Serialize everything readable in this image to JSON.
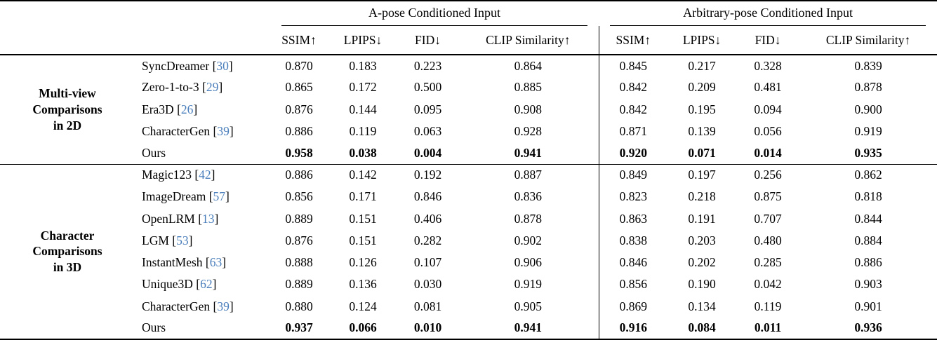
{
  "table": {
    "col_groups": [
      {
        "label": "A-pose Conditioned Input"
      },
      {
        "label": "Arbitrary-pose Conditioned Input"
      }
    ],
    "metrics": [
      "SSIM↑",
      "LPIPS↓",
      "FID↓",
      "CLIP Similarity↑"
    ],
    "citation_color": "#4a7ebb",
    "sections": [
      {
        "label_lines": [
          "Multi-view",
          "Comparisons",
          "in 2D"
        ],
        "rows": [
          {
            "method": "SyncDreamer",
            "cite": "30",
            "apose": [
              "0.870",
              "0.183",
              "0.223",
              "0.864"
            ],
            "arb": [
              "0.845",
              "0.217",
              "0.328",
              "0.839"
            ],
            "bold": false
          },
          {
            "method": "Zero-1-to-3",
            "cite": "29",
            "apose": [
              "0.865",
              "0.172",
              "0.500",
              "0.885"
            ],
            "arb": [
              "0.842",
              "0.209",
              "0.481",
              "0.878"
            ],
            "bold": false
          },
          {
            "method": "Era3D",
            "cite": "26",
            "apose": [
              "0.876",
              "0.144",
              "0.095",
              "0.908"
            ],
            "arb": [
              "0.842",
              "0.195",
              "0.094",
              "0.900"
            ],
            "bold": false
          },
          {
            "method": "CharacterGen",
            "cite": "39",
            "apose": [
              "0.886",
              "0.119",
              "0.063",
              "0.928"
            ],
            "arb": [
              "0.871",
              "0.139",
              "0.056",
              "0.919"
            ],
            "bold": false
          },
          {
            "method": "Ours",
            "cite": null,
            "apose": [
              "0.958",
              "0.038",
              "0.004",
              "0.941"
            ],
            "arb": [
              "0.920",
              "0.071",
              "0.014",
              "0.935"
            ],
            "bold": true
          }
        ]
      },
      {
        "label_lines": [
          "Character",
          "Comparisons",
          "in 3D"
        ],
        "rows": [
          {
            "method": "Magic123",
            "cite": "42",
            "apose": [
              "0.886",
              "0.142",
              "0.192",
              "0.887"
            ],
            "arb": [
              "0.849",
              "0.197",
              "0.256",
              "0.862"
            ],
            "bold": false
          },
          {
            "method": "ImageDream",
            "cite": "57",
            "apose": [
              "0.856",
              "0.171",
              "0.846",
              "0.836"
            ],
            "arb": [
              "0.823",
              "0.218",
              "0.875",
              "0.818"
            ],
            "bold": false
          },
          {
            "method": "OpenLRM",
            "cite": "13",
            "apose": [
              "0.889",
              "0.151",
              "0.406",
              "0.878"
            ],
            "arb": [
              "0.863",
              "0.191",
              "0.707",
              "0.844"
            ],
            "bold": false
          },
          {
            "method": "LGM",
            "cite": "53",
            "apose": [
              "0.876",
              "0.151",
              "0.282",
              "0.902"
            ],
            "arb": [
              "0.838",
              "0.203",
              "0.480",
              "0.884"
            ],
            "bold": false
          },
          {
            "method": "InstantMesh",
            "cite": "63",
            "apose": [
              "0.888",
              "0.126",
              "0.107",
              "0.906"
            ],
            "arb": [
              "0.846",
              "0.202",
              "0.285",
              "0.886"
            ],
            "bold": false
          },
          {
            "method": "Unique3D",
            "cite": "62",
            "apose": [
              "0.889",
              "0.136",
              "0.030",
              "0.919"
            ],
            "arb": [
              "0.856",
              "0.190",
              "0.042",
              "0.903"
            ],
            "bold": false
          },
          {
            "method": "CharacterGen",
            "cite": "39",
            "apose": [
              "0.880",
              "0.124",
              "0.081",
              "0.905"
            ],
            "arb": [
              "0.869",
              "0.134",
              "0.119",
              "0.901"
            ],
            "bold": false
          },
          {
            "method": "Ours",
            "cite": null,
            "apose": [
              "0.937",
              "0.066",
              "0.010",
              "0.941"
            ],
            "arb": [
              "0.916",
              "0.084",
              "0.011",
              "0.936"
            ],
            "bold": true
          }
        ]
      }
    ]
  }
}
